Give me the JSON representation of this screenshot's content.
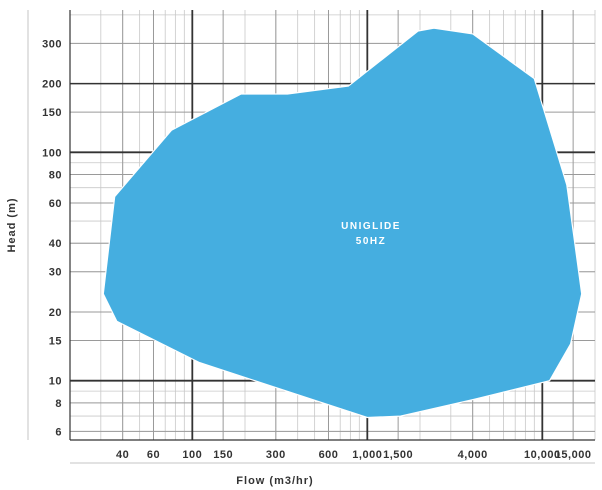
{
  "chart_data": {
    "type": "area",
    "xlabel": "Flow (m3/hr)",
    "ylabel": "Head (m)",
    "x_scale": "log",
    "y_scale": "log",
    "xlim": [
      20,
      20000
    ],
    "ylim": [
      5.5,
      420
    ],
    "x_ticks": [
      {
        "value": 40,
        "label": "40"
      },
      {
        "value": 60,
        "label": "60"
      },
      {
        "value": 100,
        "label": "100"
      },
      {
        "value": 150,
        "label": "150"
      },
      {
        "value": 300,
        "label": "300"
      },
      {
        "value": 600,
        "label": "600"
      },
      {
        "value": 1000,
        "label": "1,000"
      },
      {
        "value": 1500,
        "label": "1,500"
      },
      {
        "value": 4000,
        "label": "4,000"
      },
      {
        "value": 10000,
        "label": "10,000"
      },
      {
        "value": 15000,
        "label": "15,000"
      }
    ],
    "y_ticks": [
      {
        "value": 6,
        "label": "6"
      },
      {
        "value": 8,
        "label": "8"
      },
      {
        "value": 10,
        "label": "10"
      },
      {
        "value": 15,
        "label": "15"
      },
      {
        "value": 20,
        "label": "20"
      },
      {
        "value": 30,
        "label": "30"
      },
      {
        "value": 40,
        "label": "40"
      },
      {
        "value": 60,
        "label": "60"
      },
      {
        "value": 80,
        "label": "80"
      },
      {
        "value": 100,
        "label": "100"
      },
      {
        "value": 150,
        "label": "150"
      },
      {
        "value": 200,
        "label": "200"
      },
      {
        "value": 300,
        "label": "300"
      }
    ],
    "major_grid_x": [
      100,
      1000,
      10000
    ],
    "major_grid_y": [
      10,
      100
    ],
    "grid": true,
    "series": [
      {
        "name": "UNIGLIDE 50HZ",
        "label_lines": [
          "UNIGLIDE",
          "50HZ"
        ],
        "label_at": [
          1050,
          40
        ],
        "color": "#45aee0",
        "points": [
          [
            31,
            24
          ],
          [
            37,
            18.2
          ],
          [
            110,
            12
          ],
          [
            1000,
            6.9
          ],
          [
            1550,
            7
          ],
          [
            4100,
            8.3
          ],
          [
            11000,
            10
          ],
          [
            14500,
            14.5
          ],
          [
            16800,
            24
          ],
          [
            13800,
            72
          ],
          [
            9000,
            210
          ],
          [
            4000,
            330
          ],
          [
            2400,
            350
          ],
          [
            1950,
            340
          ],
          [
            780,
            195
          ],
          [
            350,
            180
          ],
          [
            190,
            180
          ],
          [
            76,
            125
          ],
          [
            36,
            64
          ]
        ]
      }
    ]
  }
}
